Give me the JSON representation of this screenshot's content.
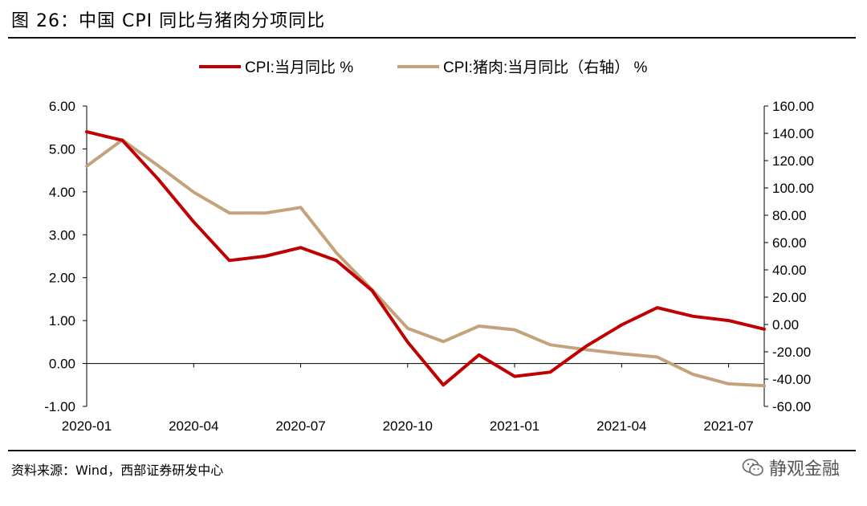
{
  "header": {
    "title": "图 26：中国 CPI 同比与猪肉分项同比"
  },
  "footer": {
    "source": "资料来源：Wind，西部证券研发中心",
    "watermark": "静观金融"
  },
  "colors": {
    "cpi": "#c00000",
    "pork": "#c4a27c",
    "axis": "#000000",
    "text": "#000000"
  },
  "chart_data": {
    "type": "line",
    "x": [
      "2020-01",
      "2020-02",
      "2020-03",
      "2020-04",
      "2020-05",
      "2020-06",
      "2020-07",
      "2020-08",
      "2020-09",
      "2020-10",
      "2020-11",
      "2020-12",
      "2021-01",
      "2021-02",
      "2021-03",
      "2021-04",
      "2021-05",
      "2021-06",
      "2021-07",
      "2021-08"
    ],
    "x_tick_labels": [
      "2020-01",
      "2020-04",
      "2020-07",
      "2020-10",
      "2021-01",
      "2021-04",
      "2021-07"
    ],
    "x_tick_positions": [
      0,
      3,
      6,
      9,
      12,
      15,
      18
    ],
    "legend_position": "top-center",
    "grid": false,
    "y_left": {
      "min": -1,
      "max": 6,
      "ticks": [
        "-1.00",
        "0.00",
        "1.00",
        "2.00",
        "3.00",
        "4.00",
        "5.00",
        "6.00"
      ]
    },
    "y_right": {
      "min": -60,
      "max": 160,
      "ticks": [
        "-60.00",
        "-40.00",
        "-20.00",
        "0.00",
        "20.00",
        "40.00",
        "60.00",
        "80.00",
        "100.00",
        "120.00",
        "140.00",
        "160.00"
      ]
    },
    "series": [
      {
        "name": "CPI:当月同比 %",
        "axis": "left",
        "color": "#c00000",
        "values": [
          5.4,
          5.2,
          4.3,
          3.3,
          2.4,
          2.5,
          2.7,
          2.4,
          1.7,
          0.5,
          -0.5,
          0.2,
          -0.3,
          -0.2,
          0.4,
          0.9,
          1.3,
          1.1,
          1.0,
          0.8
        ]
      },
      {
        "name": "CPI:猪肉:当月同比（右轴） %",
        "axis": "right",
        "color": "#c4a27c",
        "values": [
          116.0,
          135.2,
          116.4,
          96.9,
          81.7,
          81.6,
          85.7,
          52.6,
          25.5,
          -2.8,
          -12.5,
          -1.2,
          -3.9,
          -14.9,
          -18.4,
          -21.4,
          -23.8,
          -36.5,
          -43.5,
          -44.9
        ]
      }
    ]
  }
}
